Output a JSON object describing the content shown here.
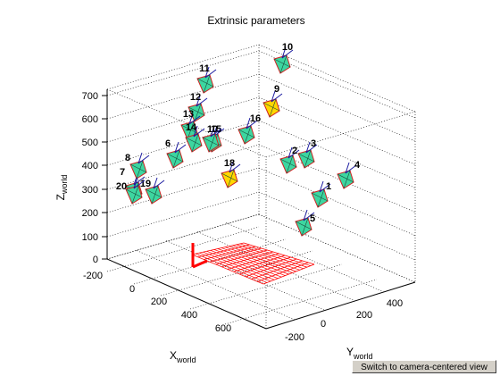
{
  "figure": {
    "title": "Extrinsic parameters",
    "zlabel": "Z",
    "zlabel_sub": "world",
    "xlabel": "X",
    "xlabel_sub": "world",
    "ylabel": "Y",
    "ylabel_sub": "world"
  },
  "button": {
    "label": "Switch to camera-centered view"
  },
  "chart_data": {
    "type": "scatter",
    "title": "Extrinsic parameters",
    "xlabel": "Xworld",
    "ylabel": "Yworld",
    "zlabel": "Zworld",
    "z_ticks": [
      "0",
      "100",
      "200",
      "300",
      "400",
      "500",
      "600",
      "700"
    ],
    "x_ticks": [
      "-200",
      "0",
      "200",
      "400",
      "600"
    ],
    "y_ticks": [
      "-200",
      "0",
      "200",
      "400"
    ],
    "grid": true,
    "cameras": [
      {
        "id": "1",
        "color": "#3dd6a0"
      },
      {
        "id": "2",
        "color": "#3dd6a0"
      },
      {
        "id": "3",
        "color": "#3dd6a0"
      },
      {
        "id": "4",
        "color": "#3dd6a0"
      },
      {
        "id": "5",
        "color": "#3dd6a0"
      },
      {
        "id": "6",
        "color": "#3dd6a0"
      },
      {
        "id": "7",
        "color": "#3dd6a0"
      },
      {
        "id": "8",
        "color": "#3dd6a0"
      },
      {
        "id": "9",
        "color": "#ffd700"
      },
      {
        "id": "10",
        "color": "#3dd6a0"
      },
      {
        "id": "11",
        "color": "#3dd6a0"
      },
      {
        "id": "12",
        "color": "#3dd6a0"
      },
      {
        "id": "13",
        "color": "#3dd6a0"
      },
      {
        "id": "14",
        "color": "#3dd6a0"
      },
      {
        "id": "15",
        "color": "#3dd6a0"
      },
      {
        "id": "16",
        "color": "#3dd6a0"
      },
      {
        "id": "18",
        "color": "#ffd700"
      },
      {
        "id": "19",
        "color": "#3dd6a0"
      },
      {
        "id": "20",
        "color": "#3dd6a0"
      },
      {
        "id": "10",
        "color": "#3dd6a0"
      }
    ],
    "colors": {
      "camera_face": "#3dd6a0",
      "camera_highlight": "#ffd700",
      "camera_edge": "#d02020",
      "pattern": "#ff0000",
      "axis_vec": "#1a1aa0"
    }
  }
}
